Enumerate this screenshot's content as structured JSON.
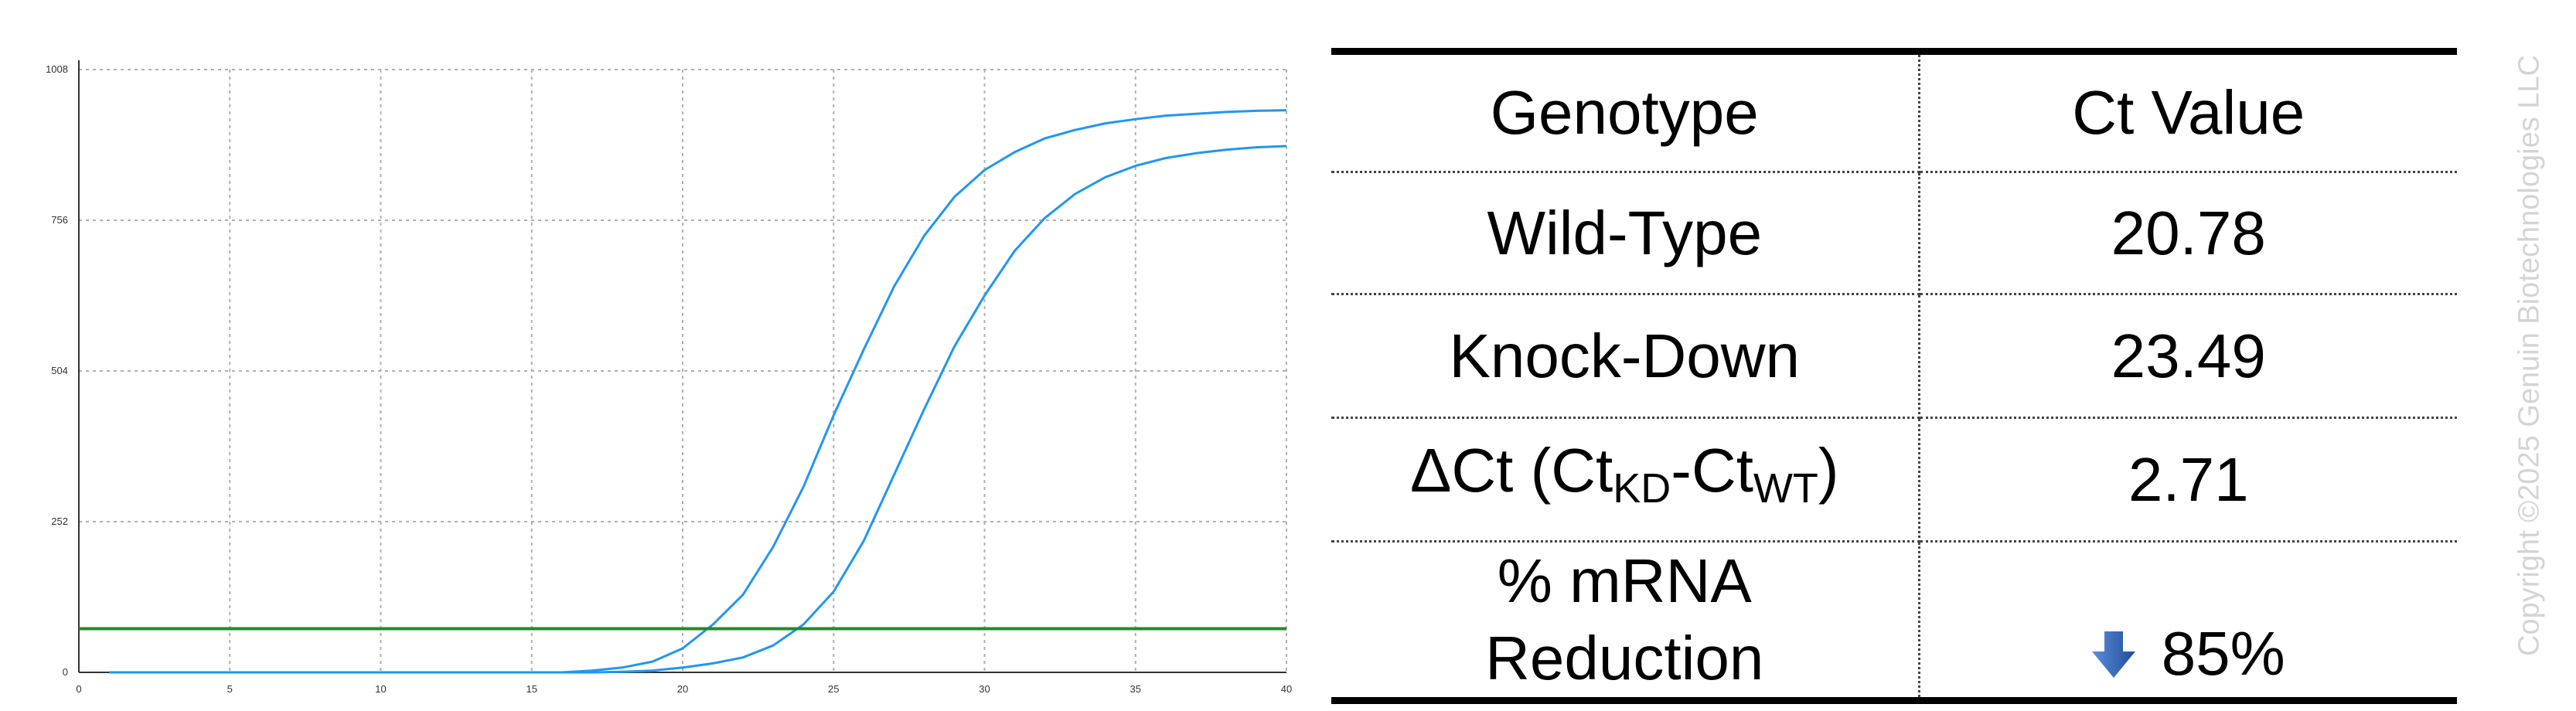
{
  "chart_data": {
    "type": "line",
    "title": "",
    "xlabel": "",
    "ylabel": "",
    "xlim": [
      0,
      40
    ],
    "ylim": [
      0,
      1008
    ],
    "x_ticks": [
      0,
      5,
      10,
      15,
      20,
      25,
      30,
      35,
      40
    ],
    "y_ticks": [
      0,
      252,
      504,
      756,
      1008
    ],
    "grid": true,
    "threshold": 73,
    "series": [
      {
        "color": "#2196f3",
        "x": [
          1,
          2,
          3,
          4,
          5,
          6,
          7,
          8,
          9,
          10,
          11,
          12,
          13,
          14,
          15,
          16,
          17,
          18,
          19,
          20,
          21,
          22,
          23,
          24,
          25,
          26,
          27,
          28,
          29,
          30,
          31,
          32,
          33,
          34,
          35,
          36,
          37,
          38,
          39,
          40
        ],
        "y": [
          0,
          0,
          0,
          0,
          0,
          0,
          0,
          0,
          0,
          0,
          0,
          0,
          0,
          0,
          0,
          0,
          3,
          8,
          18,
          40,
          80,
          130,
          210,
          310,
          430,
          540,
          645,
          730,
          795,
          840,
          870,
          893,
          907,
          918,
          925,
          931,
          934,
          937,
          939,
          940
        ]
      },
      {
        "color": "#2196f3",
        "x": [
          1,
          2,
          3,
          4,
          5,
          6,
          7,
          8,
          9,
          10,
          11,
          12,
          13,
          14,
          15,
          16,
          17,
          18,
          19,
          20,
          21,
          22,
          23,
          24,
          25,
          26,
          27,
          28,
          29,
          30,
          31,
          32,
          33,
          34,
          35,
          36,
          37,
          38,
          39,
          40
        ],
        "y": [
          0,
          0,
          0,
          0,
          0,
          0,
          0,
          0,
          0,
          0,
          0,
          0,
          0,
          0,
          0,
          0,
          0,
          1,
          3,
          8,
          15,
          25,
          45,
          80,
          135,
          220,
          330,
          440,
          545,
          630,
          705,
          760,
          800,
          828,
          847,
          860,
          868,
          874,
          878,
          880
        ]
      }
    ],
    "colors": {
      "curve": "#2196f3",
      "threshold": "#228b22",
      "grid": "#b0b0b0",
      "axis": "#333333"
    }
  },
  "table": {
    "header": {
      "genotype": "Genotype",
      "ct": "Ct Value"
    },
    "rows": {
      "wild_type": {
        "label": "Wild-Type",
        "value": "20.78"
      },
      "knock_down": {
        "label": "Knock-Down",
        "value": "23.49"
      },
      "delta_ct": {
        "label_prefix": "ΔCt (Ct",
        "sub_kd": "KD",
        "label_mid": "-Ct",
        "sub_wt": "WT",
        "label_suffix": ")",
        "value": "2.71"
      },
      "reduction": {
        "label_line1": "% mRNA",
        "label_line2": "Reduction",
        "value": "85%",
        "icon": "arrow-down-icon",
        "icon_color": "#3a67b5"
      }
    }
  },
  "copyright": "Copyright ©2025 Genuin Biotechnologies LLC"
}
